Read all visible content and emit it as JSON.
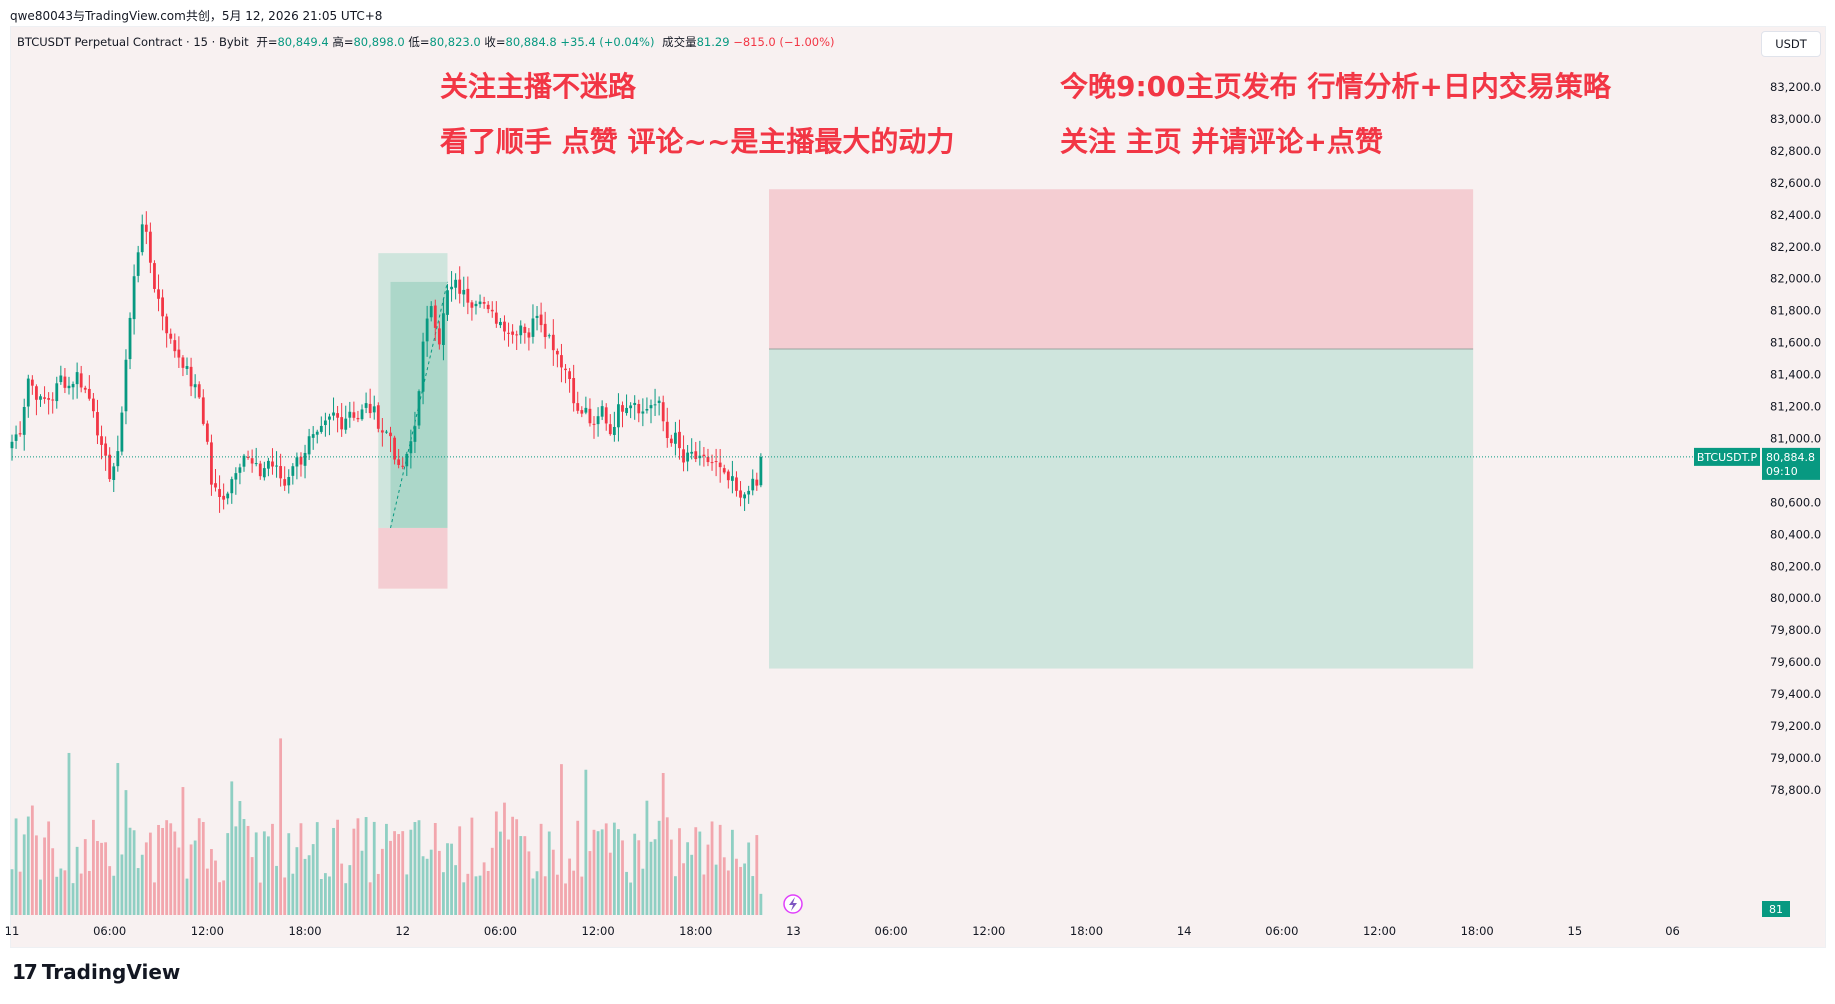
{
  "caption": "qwe80043与TradingView.com共创，5月 12, 2026 21:05 UTC+8",
  "legend": {
    "symbol": "BTCUSDT Perpetual Contract · 15 · Bybit",
    "open_label": "开=",
    "open": "80,849.4",
    "high_label": "高=",
    "high": "80,898.0",
    "low_label": "低=",
    "low": "80,823.0",
    "close_label": "收=",
    "close": "80,884.8",
    "change": "+35.4 (+0.04%)",
    "volume_label": "成交量",
    "volume": "81.29",
    "volume_change": "−815.0 (−1.00%)"
  },
  "overlay_text": {
    "left_line1": "关注主播不迷路",
    "left_line2": "看了顺手 点赞 评论~~是主播最大的动力",
    "right_line1": "今晚9:00主页发布 行情分析+日内交易策略",
    "right_line2": "关注 主页 并请评论+点赞"
  },
  "currency_button": "USDT",
  "price_tag": {
    "symbol": "BTCUSDT.P",
    "price": "80,884.8",
    "countdown": "09:10"
  },
  "volume_tag": "81",
  "logo_text": "TradingView",
  "colors": {
    "up": "#089981",
    "down": "#f23645",
    "tp_fill": "#cfe5dd",
    "sl_fill": "#f4cdd2",
    "bg": "#f8f1f1"
  },
  "icons": [
    "tradingview-logo-icon",
    "lightning-icon"
  ],
  "chart_data": {
    "type": "candlestick",
    "symbol": "BTCUSDT.P",
    "interval": "15",
    "last_price": 80884.8,
    "y_ticks": [
      83200,
      83000,
      82800,
      82600,
      82400,
      82200,
      82000,
      81800,
      81600,
      81400,
      81200,
      81000,
      80600,
      80400,
      80200,
      80000,
      79800,
      79600,
      79400,
      79200,
      79000,
      78800
    ],
    "y_tick_labels": [
      "83,200.0",
      "83,000.0",
      "82,800.0",
      "82,600.0",
      "82,400.0",
      "82,200.0",
      "82,000.0",
      "81,800.0",
      "81,600.0",
      "81,400.0",
      "81,200.0",
      "81,000.0",
      "80,600.0",
      "80,400.0",
      "80,200.0",
      "80,000.0",
      "79,800.0",
      "79,600.0",
      "79,400.0",
      "79,200.0",
      "79,000.0",
      "78,800.0"
    ],
    "x_labels": [
      "11",
      "06:00",
      "12:00",
      "18:00",
      "12",
      "06:00",
      "12:00",
      "18:00",
      "13",
      "06:00",
      "12:00",
      "18:00",
      "14",
      "06:00",
      "12:00",
      "18:00",
      "15",
      "06"
    ],
    "x_label_bars": [
      0,
      24,
      48,
      72,
      96,
      120,
      144,
      168,
      192,
      216,
      240,
      264,
      288,
      312,
      336,
      360,
      384,
      408
    ],
    "keypoints": [
      [
        0,
        80980
      ],
      [
        2,
        81060
      ],
      [
        4,
        81380
      ],
      [
        7,
        81230
      ],
      [
        10,
        81260
      ],
      [
        12,
        81380
      ],
      [
        14,
        81330
      ],
      [
        16,
        81400
      ],
      [
        18,
        81300
      ],
      [
        20,
        81200
      ],
      [
        22,
        80920
      ],
      [
        24,
        80780
      ],
      [
        26,
        80880
      ],
      [
        28,
        81500
      ],
      [
        30,
        82000
      ],
      [
        32,
        82370
      ],
      [
        33,
        82250
      ],
      [
        35,
        81960
      ],
      [
        37,
        81780
      ],
      [
        39,
        81600
      ],
      [
        42,
        81480
      ],
      [
        44,
        81350
      ],
      [
        46,
        81260
      ],
      [
        48,
        80970
      ],
      [
        49,
        80720
      ],
      [
        51,
        80620
      ],
      [
        53,
        80680
      ],
      [
        55,
        80820
      ],
      [
        57,
        80900
      ],
      [
        59,
        80830
      ],
      [
        61,
        80780
      ],
      [
        63,
        80860
      ],
      [
        65,
        80800
      ],
      [
        67,
        80710
      ],
      [
        69,
        80850
      ],
      [
        71,
        80870
      ],
      [
        73,
        80990
      ],
      [
        75,
        81000
      ],
      [
        77,
        81080
      ],
      [
        79,
        81150
      ],
      [
        81,
        81100
      ],
      [
        83,
        81180
      ],
      [
        85,
        81130
      ],
      [
        87,
        81200
      ],
      [
        89,
        81160
      ],
      [
        91,
        81050
      ],
      [
        93,
        81020
      ],
      [
        95,
        80790
      ],
      [
        97,
        80870
      ],
      [
        99,
        81080
      ],
      [
        101,
        81580
      ],
      [
        103,
        81850
      ],
      [
        105,
        81620
      ],
      [
        107,
        81910
      ],
      [
        109,
        81960
      ],
      [
        111,
        81900
      ],
      [
        113,
        81860
      ],
      [
        115,
        81900
      ],
      [
        117,
        81780
      ],
      [
        119,
        81750
      ],
      [
        121,
        81710
      ],
      [
        123,
        81650
      ],
      [
        125,
        81720
      ],
      [
        127,
        81650
      ],
      [
        129,
        81800
      ],
      [
        131,
        81680
      ],
      [
        133,
        81590
      ],
      [
        135,
        81480
      ],
      [
        137,
        81380
      ],
      [
        139,
        81150
      ],
      [
        141,
        81170
      ],
      [
        143,
        81050
      ],
      [
        145,
        81190
      ],
      [
        147,
        81040
      ],
      [
        149,
        81180
      ],
      [
        151,
        81230
      ],
      [
        153,
        81240
      ],
      [
        155,
        81160
      ],
      [
        157,
        81220
      ],
      [
        159,
        81200
      ],
      [
        161,
        81010
      ],
      [
        163,
        81000
      ],
      [
        165,
        80850
      ],
      [
        167,
        80900
      ],
      [
        169,
        80850
      ],
      [
        171,
        80860
      ],
      [
        173,
        80840
      ],
      [
        175,
        80750
      ],
      [
        177,
        80720
      ],
      [
        179,
        80600
      ],
      [
        181,
        80710
      ],
      [
        183,
        80700
      ],
      [
        184,
        80884.8
      ]
    ],
    "bars": 185,
    "long_position": {
      "start_bar": 90,
      "end_bar": 107,
      "entry": 80440,
      "target": 81980,
      "stop": 80060
    },
    "projection_box": {
      "start_bar": 186,
      "end_bar": 359,
      "top": 82560,
      "mid": 81560,
      "bottom": 79560
    },
    "volume": {
      "max": 850,
      "last": 81
    }
  }
}
